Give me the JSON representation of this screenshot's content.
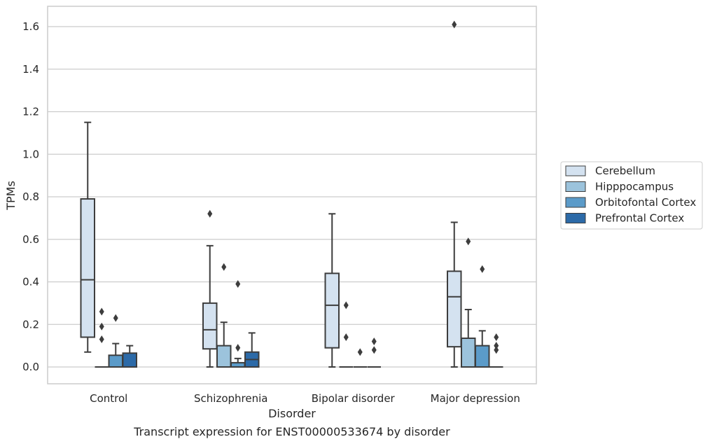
{
  "chart_data": {
    "type": "box",
    "title": "",
    "caption": "Transcript expression for ENST00000533674 by disorder",
    "xlabel": "Disorder",
    "ylabel": "TPMs",
    "ylim": [
      -0.08,
      1.69
    ],
    "yticks": [
      "0.0",
      "0.2",
      "0.4",
      "0.6",
      "0.8",
      "1.0",
      "1.2",
      "1.4",
      "1.6"
    ],
    "ytick_values": [
      0,
      0.2,
      0.4,
      0.6,
      0.8,
      1.0,
      1.2,
      1.4,
      1.6
    ],
    "grid": "horizontal",
    "legend_position": "right",
    "categories": [
      "Control",
      "Schizophrenia",
      "Bipolar disorder",
      "Major depression"
    ],
    "series": [
      {
        "name": "Cerebellum",
        "color": "#d4e2f0",
        "boxes": [
          {
            "q1": 0.14,
            "median": 0.41,
            "q3": 0.79,
            "whisker_low": 0.07,
            "whisker_high": 1.15,
            "outliers": []
          },
          {
            "q1": 0.085,
            "median": 0.175,
            "q3": 0.3,
            "whisker_low": 0.0,
            "whisker_high": 0.57,
            "outliers": [
              0.72
            ]
          },
          {
            "q1": 0.09,
            "median": 0.29,
            "q3": 0.44,
            "whisker_low": 0.0,
            "whisker_high": 0.72,
            "outliers": []
          },
          {
            "q1": 0.095,
            "median": 0.33,
            "q3": 0.45,
            "whisker_low": 0.0,
            "whisker_high": 0.68,
            "outliers": [
              1.61
            ]
          }
        ]
      },
      {
        "name": "Hipppocampus",
        "color": "#9cc3dc",
        "boxes": [
          {
            "q1": 0.0,
            "median": 0.0,
            "q3": 0.0,
            "whisker_low": 0.0,
            "whisker_high": 0.0,
            "outliers": [
              0.13,
              0.19,
              0.26
            ]
          },
          {
            "q1": 0.0,
            "median": 0.0,
            "q3": 0.1,
            "whisker_low": 0.0,
            "whisker_high": 0.21,
            "outliers": [
              0.47
            ]
          },
          {
            "q1": 0.0,
            "median": 0.0,
            "q3": 0.0,
            "whisker_low": 0.0,
            "whisker_high": 0.0,
            "outliers": [
              0.14,
              0.29
            ]
          },
          {
            "q1": 0.0,
            "median": 0.0,
            "q3": 0.135,
            "whisker_low": 0.0,
            "whisker_high": 0.27,
            "outliers": [
              0.59
            ]
          }
        ]
      },
      {
        "name": "Orbitofontal Cortex",
        "color": "#5b9bc9",
        "boxes": [
          {
            "q1": 0.0,
            "median": 0.0,
            "q3": 0.055,
            "whisker_low": 0.0,
            "whisker_high": 0.11,
            "outliers": [
              0.23
            ]
          },
          {
            "q1": 0.0,
            "median": 0.0,
            "q3": 0.02,
            "whisker_low": 0.0,
            "whisker_high": 0.04,
            "outliers": [
              0.09,
              0.39
            ]
          },
          {
            "q1": 0.0,
            "median": 0.0,
            "q3": 0.0,
            "whisker_low": 0.0,
            "whisker_high": 0.0,
            "outliers": [
              0.07
            ]
          },
          {
            "q1": 0.0,
            "median": 0.0,
            "q3": 0.1,
            "whisker_low": 0.0,
            "whisker_high": 0.17,
            "outliers": [
              0.46
            ]
          }
        ]
      },
      {
        "name": "Prefrontal Cortex",
        "color": "#2c6aa8",
        "boxes": [
          {
            "q1": 0.0,
            "median": 0.0,
            "q3": 0.065,
            "whisker_low": 0.0,
            "whisker_high": 0.1,
            "outliers": []
          },
          {
            "q1": 0.0,
            "median": 0.035,
            "q3": 0.07,
            "whisker_low": 0.0,
            "whisker_high": 0.16,
            "outliers": []
          },
          {
            "q1": 0.0,
            "median": 0.0,
            "q3": 0.0,
            "whisker_low": 0.0,
            "whisker_high": 0.0,
            "outliers": [
              0.08,
              0.12
            ]
          },
          {
            "q1": 0.0,
            "median": 0.0,
            "q3": 0.0,
            "whisker_low": 0.0,
            "whisker_high": 0.0,
            "outliers": [
              0.08,
              0.1,
              0.14
            ]
          }
        ]
      }
    ]
  }
}
